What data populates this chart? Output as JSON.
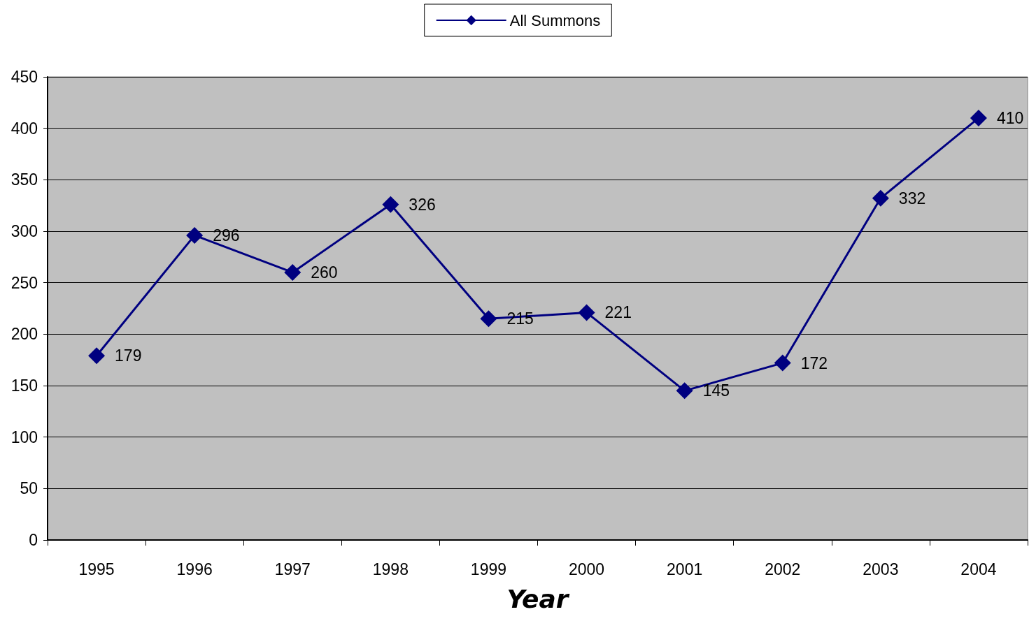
{
  "chart_data": {
    "type": "line",
    "xlabel": "Year",
    "categories": [
      "1995",
      "1996",
      "1997",
      "1998",
      "1999",
      "2000",
      "2001",
      "2002",
      "2003",
      "2004"
    ],
    "series": [
      {
        "name": "All Summons",
        "color": "#000080",
        "values": [
          179,
          296,
          260,
          326,
          215,
          221,
          145,
          172,
          332,
          410
        ]
      }
    ],
    "ylim": [
      0,
      450
    ],
    "yticks": [
      0,
      50,
      100,
      150,
      200,
      250,
      300,
      350,
      400,
      450
    ],
    "grid": "y",
    "legend": "top",
    "marker": "diamond",
    "line_style": "solid",
    "data_labels": true
  }
}
